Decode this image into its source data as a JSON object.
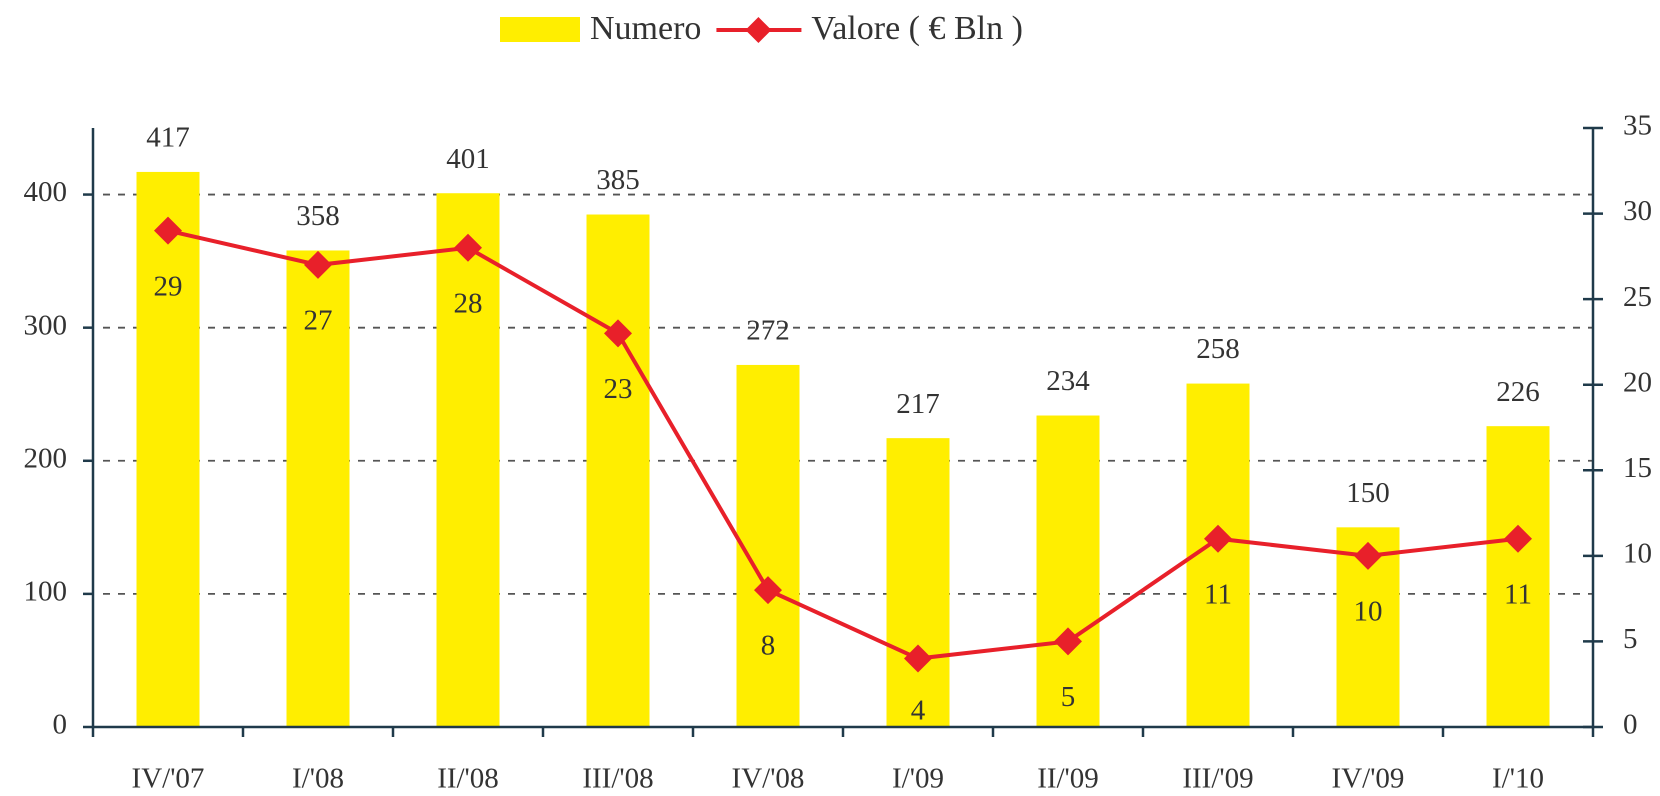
{
  "chart_data": {
    "type": "bar_line",
    "categories": [
      "IV/'07",
      "I/'08",
      "II/'08",
      "III/'08",
      "IV/'08",
      "I/'09",
      "II/'09",
      "III/'09",
      "IV/'09",
      "I/'10"
    ],
    "series": [
      {
        "name": "Numero",
        "type": "bar",
        "color": "#ffee00",
        "values": [
          417,
          358,
          401,
          385,
          272,
          217,
          234,
          258,
          150,
          226
        ]
      },
      {
        "name": "Valore ( € Bln )",
        "type": "line",
        "axis": "y2",
        "color": "#e8202a",
        "values": [
          29,
          27,
          28,
          23,
          8,
          4,
          5,
          11,
          10,
          11
        ]
      }
    ],
    "ylim": [
      0,
      450
    ],
    "yticks": [
      0,
      100,
      200,
      300,
      400
    ],
    "y2lim": [
      0,
      35
    ],
    "y2ticks": [
      0,
      5,
      10,
      15,
      20,
      25,
      30,
      35
    ],
    "grid": true,
    "legend": "top"
  }
}
